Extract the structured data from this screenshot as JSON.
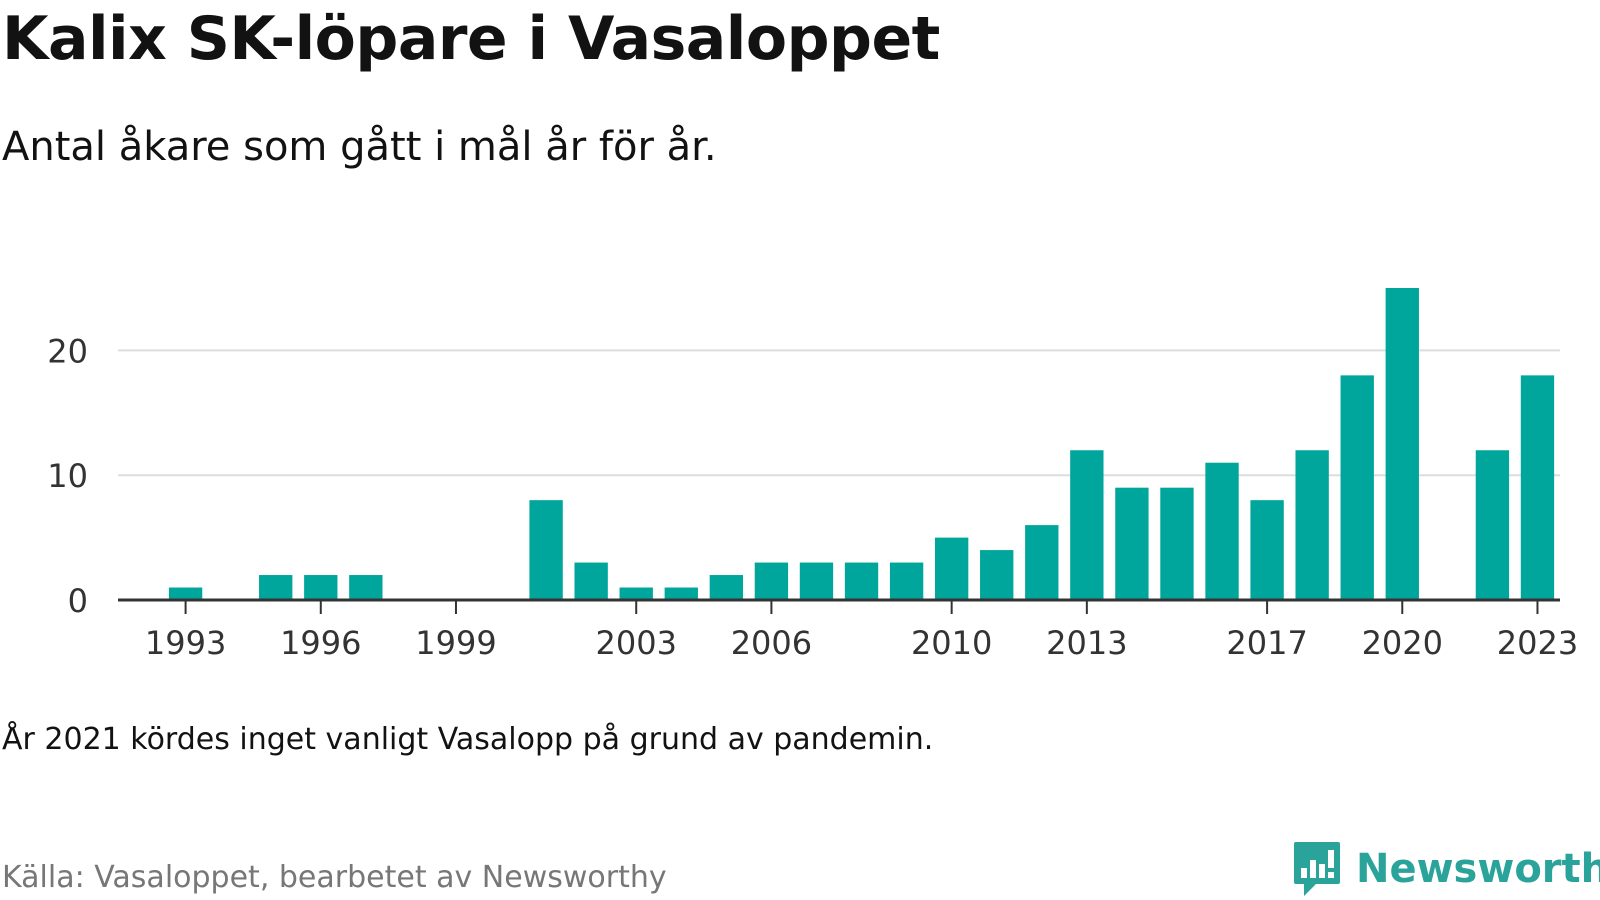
{
  "header": {
    "title": "Kalix SK-löpare i Vasaloppet",
    "subtitle": "Antal åkare som gått i mål år för år."
  },
  "footer": {
    "note": "År 2021 kördes inget vanligt Vasalopp på grund av pandemin.",
    "source": "Källa: Vasaloppet, bearbetet av Newsworthy",
    "brand": "Newsworthy",
    "brand_icon": "newsworthy-chart-bubble-icon"
  },
  "colors": {
    "bar": "#00a69c",
    "gridline": "#dddddd",
    "axis": "#333333",
    "brand": "#2aa39a"
  },
  "chart_data": {
    "type": "bar",
    "title": "Kalix SK-löpare i Vasaloppet",
    "subtitle": "Antal åkare som gått i mål år för år.",
    "xlabel": "",
    "ylabel": "",
    "ylim": [
      0,
      25
    ],
    "yticks": [
      0,
      10,
      20
    ],
    "xticks": [
      "1993",
      "1996",
      "1999",
      "2003",
      "2006",
      "2010",
      "2013",
      "2017",
      "2020",
      "2023"
    ],
    "grid": true,
    "categories": [
      "1992",
      "1993",
      "1994",
      "1995",
      "1996",
      "1997",
      "1998",
      "1999",
      "2000",
      "2001",
      "2002",
      "2003",
      "2004",
      "2005",
      "2006",
      "2007",
      "2008",
      "2009",
      "2010",
      "2011",
      "2012",
      "2013",
      "2014",
      "2015",
      "2016",
      "2017",
      "2018",
      "2019",
      "2020",
      "2021",
      "2022",
      "2023"
    ],
    "values": [
      0,
      1,
      0,
      2,
      2,
      2,
      0,
      0,
      0,
      8,
      3,
      1,
      1,
      2,
      3,
      3,
      3,
      3,
      5,
      4,
      6,
      12,
      9,
      9,
      11,
      8,
      12,
      18,
      25,
      0,
      12,
      18
    ]
  }
}
